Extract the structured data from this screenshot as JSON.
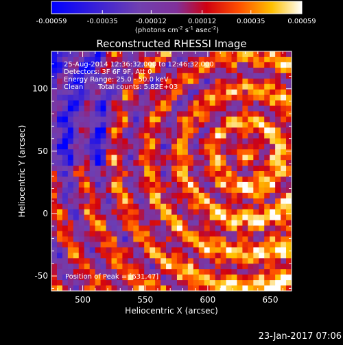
{
  "chart_data": {
    "type": "heatmap",
    "title": "Reconstructed RHESSI Image",
    "xlabel": "Heliocentric X (arcsec)",
    "ylabel": "Heliocentric Y (arcsec)",
    "xlim": [
      475,
      667
    ],
    "ylim": [
      -62,
      130
    ],
    "x_ticks": [
      500,
      550,
      600,
      650
    ],
    "y_ticks": [
      -50,
      0,
      50,
      100
    ],
    "colorbar": {
      "range": [
        -0.00059,
        0.00059
      ],
      "tick_values": [
        -0.00059,
        -0.00035,
        -0.00012,
        0.00012,
        0.00035,
        0.00059
      ],
      "tick_labels": [
        "-0.00059",
        "-0.00035",
        "-0.00012",
        "0.00012",
        "0.00035",
        "0.00059"
      ],
      "units_main": "(photons cm",
      "units_sup1": "-2",
      "units_mid1": " s",
      "units_sup2": "-1",
      "units_mid2": " asec",
      "units_sup3": "-2",
      "units_end": ")"
    },
    "annotations": {
      "time_range": "25-Aug-2014 12:36:32.000 to 12:46:32.000",
      "detectors": "Detectors: 3F 6F 9F, Att 0",
      "energy": "Energy Range: 25.0 - 50.0 keV",
      "method": "Clean",
      "total_counts": "Total counts: 5.82E+03",
      "peak": "Position of Peak = [631,47]"
    },
    "peak_position": [
      631,
      47
    ],
    "colors": {
      "negative_low": "#0000ff",
      "zero": "#8040a0",
      "positive_high": "#ffffff",
      "mid_red": "#e00000",
      "mid_yellow": "#ffc000"
    }
  },
  "footer": {
    "timestamp": "23-Jan-2017 07:06"
  }
}
